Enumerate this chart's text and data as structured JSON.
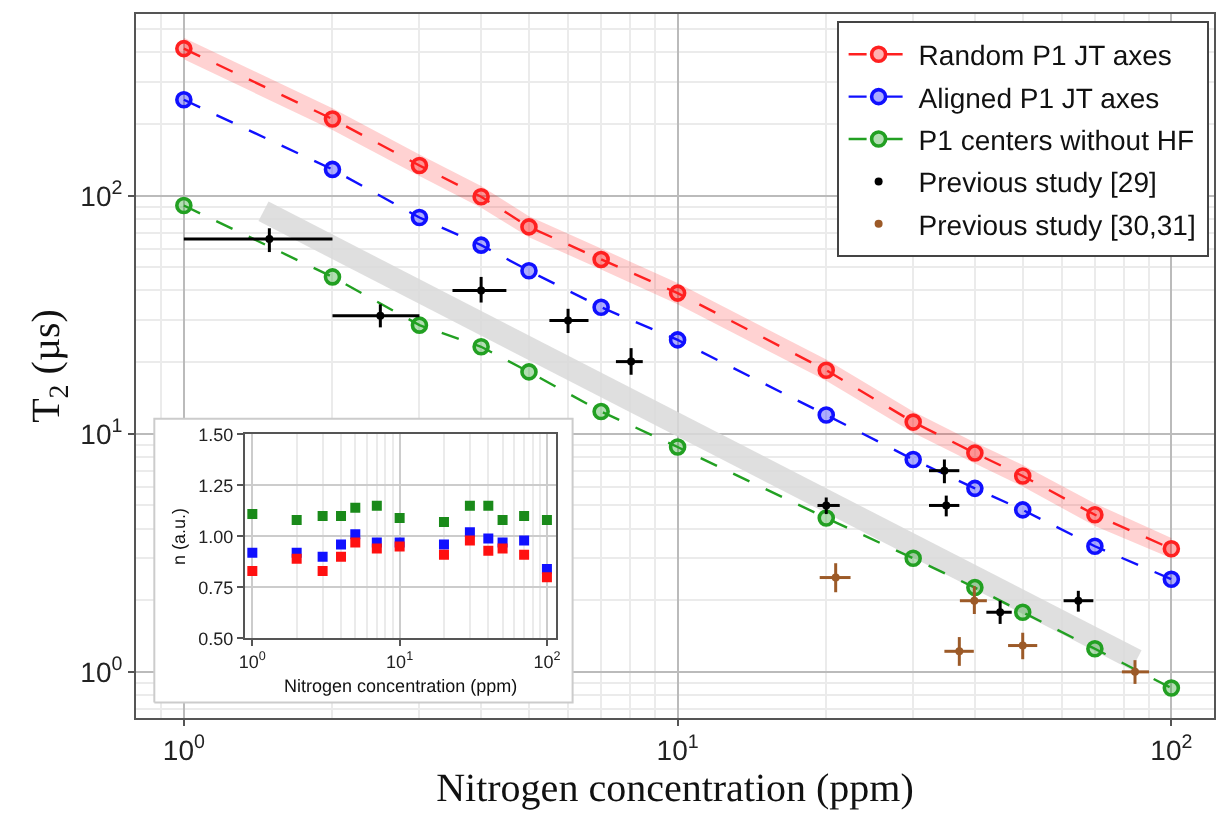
{
  "chart_data": [
    {
      "type": "line",
      "xlabel": "Nitrogen concentration (ppm)",
      "ylabel": "T$_{2}$ (µs)",
      "log": "xy",
      "grid": true,
      "legend": "top right",
      "x": [
        1,
        2,
        3,
        4,
        5,
        7,
        10,
        20,
        30,
        40,
        50,
        70,
        100
      ],
      "xlim": [
        0.8,
        122
      ],
      "ylim": [
        0.64,
        580
      ],
      "xticks": [
        {
          "value": 1,
          "label": "10$^{0}$"
        },
        {
          "value": 10,
          "label": "10$^{1}$"
        },
        {
          "value": 100,
          "label": "10$^{2}$"
        }
      ],
      "yticks": [
        {
          "value": 1,
          "label": "10$^{0}$"
        },
        {
          "value": 10,
          "label": "10$^{1}$"
        },
        {
          "value": 100,
          "label": "10$^{2}$"
        }
      ],
      "series": [
        {
          "color": "#d9d9d9",
          "type": "line",
          "marker": "none",
          "line_style": "solid",
          "x": [
            1.45,
            85
          ],
          "values": [
            86,
            1.12
          ]
        },
        {
          "name": "Random P1 JT axes",
          "color": "#ff2020",
          "type": "line",
          "marker": "circle",
          "line_style": "dashed",
          "values": [
            415,
            210,
            134,
            99,
            74,
            54,
            39,
            18.5,
            11.2,
            8.3,
            6.65,
            4.57,
            3.29
          ],
          "lower": [
            374,
            189,
            121,
            89,
            67,
            49,
            35,
            16.7,
            10.1,
            7.5,
            6.0,
            4.1,
            3.0
          ],
          "upper": [
            461,
            233,
            149,
            110,
            82,
            60,
            43,
            20.5,
            12.4,
            9.2,
            7.4,
            5.1,
            3.65
          ]
        },
        {
          "name": "Aligned P1 JT axes",
          "color": "#1010ff",
          "type": "line",
          "marker": "circle",
          "line_style": "dashed",
          "values": [
            253,
            129,
            81,
            62,
            48.4,
            34,
            24.8,
            12.0,
            7.8,
            5.9,
            4.79,
            3.37,
            2.45
          ]
        },
        {
          "name": "P1 centers without HF",
          "color": "#22a022",
          "type": "line",
          "marker": "circle",
          "line_style": "dashed",
          "values": [
            91,
            45.6,
            28.6,
            23.2,
            18.2,
            12.4,
            8.8,
            4.43,
            3.0,
            2.26,
            1.78,
            1.25,
            0.855
          ]
        },
        {
          "name": "Previous study [29]",
          "color": "#000000",
          "type": "scatter",
          "marker": "circle",
          "x": [
            1.49,
            2.5,
            4,
            6,
            8.05,
            20,
            34.7,
            35,
            45,
            64.8
          ],
          "values": [
            65.8,
            31.3,
            40,
            29.9,
            20.1,
            5.0,
            7.0,
            5.0,
            1.78,
            1.99
          ],
          "errors": [
            [
              58,
              73
            ],
            [
              28,
              35
            ],
            [
              35.6,
              45.6
            ],
            [
              26.5,
              33.5
            ],
            [
              17.7,
              22.9
            ],
            [
              4.6,
              5.4
            ],
            [
              6.2,
              7.8
            ],
            [
              4.5,
              5.5
            ],
            [
              1.59,
              1.99
            ],
            [
              1.79,
              2.19
            ]
          ],
          "xerrors": [
            [
              1,
              2
            ],
            [
              2,
              3
            ],
            [
              3.5,
              4.5
            ],
            [
              5.5,
              6.6
            ],
            [
              7.5,
              8.5
            ],
            [
              19.2,
              21.3
            ],
            [
              32.3,
              37.2
            ],
            [
              32.3,
              37.2
            ],
            [
              42.2,
              47.5
            ],
            [
              60.5,
              69.5
            ]
          ]
        },
        {
          "name": "Previous study [30,31]",
          "color": "#9c5a28",
          "type": "scatter",
          "marker": "circle",
          "x": [
            20.9,
            39.9,
            37.2,
            50,
            84.4
          ],
          "values": [
            2.49,
            1.99,
            1.22,
            1.29,
            1.0
          ],
          "errors": [
            [
              2.16,
              2.86
            ],
            [
              1.75,
              2.29
            ],
            [
              1.06,
              1.4
            ],
            [
              1.13,
              1.46
            ],
            [
              0.89,
              1.12
            ]
          ],
          "xerrors": [
            [
              19.4,
              22.4
            ],
            [
              37.3,
              42.3
            ],
            [
              34.7,
              39.8
            ],
            [
              46.7,
              53.5
            ],
            [
              79.4,
              90.1
            ]
          ]
        }
      ]
    },
    {
      "type": "scatter",
      "xlabel": "Nitrogen concentration (ppm)",
      "ylabel": "n (a.u.)",
      "log": "x",
      "grid": true,
      "marker": "square",
      "x": [
        1,
        2,
        3,
        4,
        5,
        7,
        10,
        20,
        30,
        40,
        50,
        70,
        100
      ],
      "xlim": [
        0.89,
        116
      ],
      "ylim": [
        0.5,
        1.5
      ],
      "xticks": [
        {
          "value": 1,
          "label": "10$^{0}$"
        },
        {
          "value": 10,
          "label": "10$^{1}$"
        },
        {
          "value": 100,
          "label": "10$^{2}$"
        }
      ],
      "yticks": [
        {
          "value": 0.5,
          "label": "0.50"
        },
        {
          "value": 0.75,
          "label": "0.75"
        },
        {
          "value": 1.0,
          "label": "1.00"
        },
        {
          "value": 1.25,
          "label": "1.25"
        },
        {
          "value": 1.5,
          "label": "1.50"
        }
      ],
      "series": [
        {
          "color": "#1a8a1a",
          "values": [
            1.11,
            1.08,
            1.1,
            1.1,
            1.14,
            1.15,
            1.09,
            1.07,
            1.15,
            1.15,
            1.08,
            1.1,
            1.08
          ]
        },
        {
          "color": "#1010ff",
          "values": [
            0.92,
            0.92,
            0.9,
            0.96,
            1.01,
            0.97,
            0.97,
            0.96,
            1.02,
            0.99,
            0.97,
            0.98,
            0.84
          ]
        },
        {
          "color": "#ff1010",
          "values": [
            0.83,
            0.89,
            0.83,
            0.9,
            0.97,
            0.94,
            0.95,
            0.91,
            0.98,
            0.93,
            0.94,
            0.91,
            0.8
          ]
        }
      ]
    }
  ]
}
